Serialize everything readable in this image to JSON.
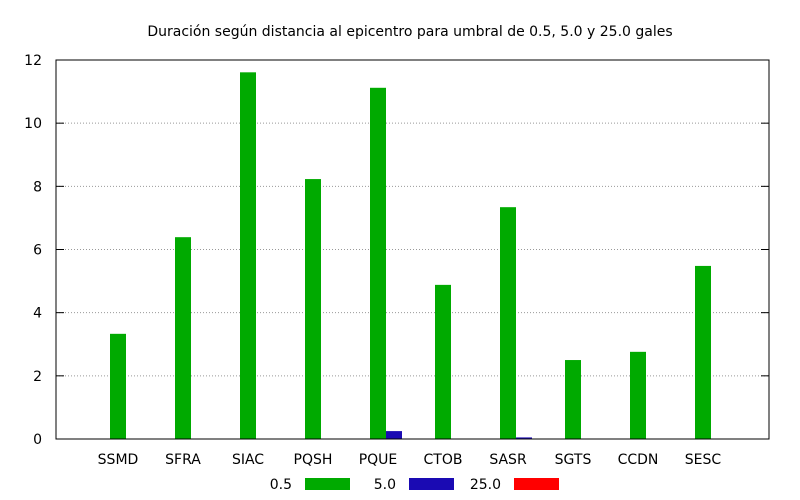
{
  "chart_data": {
    "type": "bar",
    "title": "Duración según distancia al epicentro para umbral de 0.5, 5.0 y 25.0 gales",
    "xlabel": "",
    "ylabel": "",
    "ylim": [
      0,
      12
    ],
    "yticks": [
      "0",
      "2",
      "4",
      "6",
      "8",
      "10",
      "12"
    ],
    "grid": true,
    "legend_position": "bottom",
    "categories": [
      "SSMD",
      "SFRA",
      "SIAC",
      "PQSH",
      "PQUE",
      "CTOB",
      "SASR",
      "SGTS",
      "CCDN",
      "SESC"
    ],
    "series": [
      {
        "name": "0.5",
        "color": "#00aa00",
        "values": [
          3.33,
          6.39,
          11.61,
          8.23,
          11.12,
          4.88,
          7.34,
          2.5,
          2.76,
          5.48
        ]
      },
      {
        "name": "5.0",
        "color": "#1a0ab3",
        "values": [
          0,
          0,
          0,
          0,
          0.25,
          0,
          0.05,
          0,
          0,
          0
        ]
      },
      {
        "name": "25.0",
        "color": "#ff0000",
        "values": [
          0,
          0,
          0,
          0,
          0,
          0,
          0,
          0,
          0,
          0
        ]
      }
    ]
  }
}
